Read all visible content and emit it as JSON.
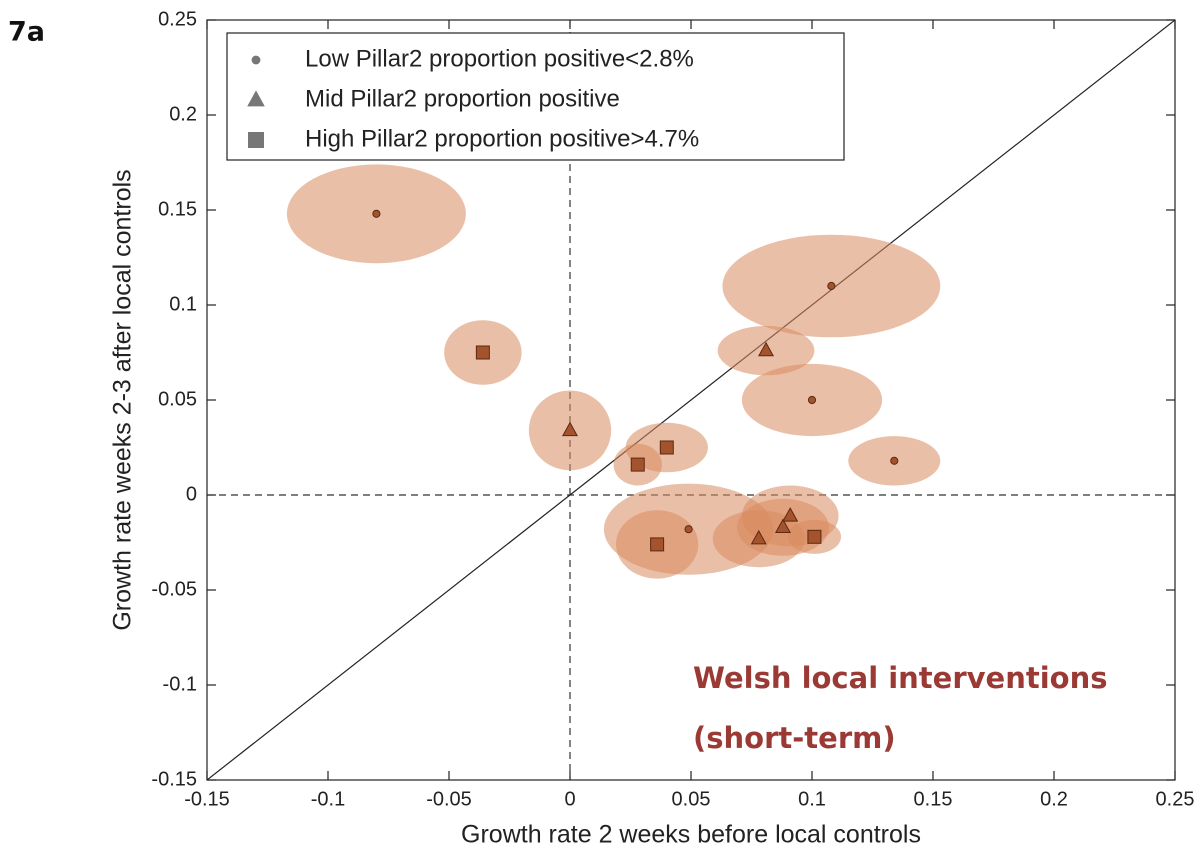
{
  "panel_label": "7a",
  "chart_data": {
    "type": "scatter",
    "xlabel": "Growth rate 2 weeks before local controls",
    "ylabel": "Growth rate weeks 2-3 after local controls",
    "annotation": [
      "Welsh local interventions",
      "(short-term)"
    ],
    "xlim": [
      -0.15,
      0.25
    ],
    "ylim": [
      -0.15,
      0.25
    ],
    "xticks": [
      -0.15,
      -0.1,
      -0.05,
      0,
      0.05,
      0.1,
      0.15,
      0.2,
      0.25
    ],
    "yticks": [
      -0.15,
      -0.1,
      -0.05,
      0,
      0.05,
      0.1,
      0.15,
      0.2,
      0.25
    ],
    "diagonal": true,
    "zero_lines": true,
    "legend": "upper left",
    "ellipse_color": "#d98a5e",
    "series": [
      {
        "name": "Low Pillar2 proportion positive<2.8%",
        "marker": "circle",
        "color": "#a4532d",
        "x": [
          -0.08,
          0.108,
          0.1,
          0.134,
          0.049
        ],
        "values": [
          0.148,
          0.11,
          0.05,
          0.018,
          -0.018
        ],
        "x_err": [
          0.037,
          0.045,
          0.029,
          0.019,
          0.035
        ],
        "y_err": [
          0.026,
          0.027,
          0.019,
          0.013,
          0.024
        ]
      },
      {
        "name": "Mid Pillar2 proportion positive",
        "marker": "triangle",
        "color": "#a4532d",
        "x": [
          0,
          0.081,
          0.078,
          0.088,
          0.091
        ],
        "values": [
          0.034,
          0.076,
          -0.023,
          -0.017,
          -0.011
        ],
        "x_err": [
          0.017,
          0.02,
          0.019,
          0.019,
          0.02
        ],
        "y_err": [
          0.021,
          0.013,
          0.015,
          0.015,
          0.016
        ]
      },
      {
        "name": "High Pillar2 proportion positive>4.7%",
        "marker": "square",
        "color": "#a4532d",
        "x": [
          -0.036,
          0.04,
          0.028,
          0.036,
          0.101
        ],
        "values": [
          0.075,
          0.025,
          0.016,
          -0.026,
          -0.022
        ],
        "x_err": [
          0.016,
          0.017,
          0.01,
          0.017,
          0.011
        ],
        "y_err": [
          0.017,
          0.013,
          0.011,
          0.018,
          0.009
        ]
      }
    ]
  }
}
